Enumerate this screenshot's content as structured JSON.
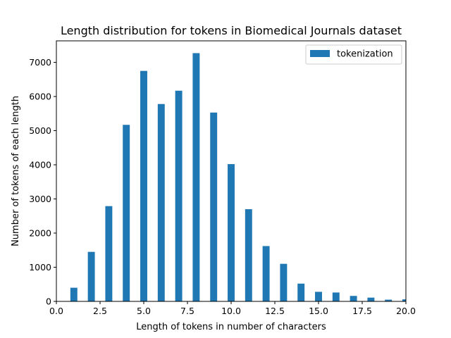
{
  "chart_data": {
    "type": "bar",
    "title": "Length distribution for tokens in Biomedical Journals dataset",
    "xlabel": "Length of tokens in number of characters",
    "ylabel": "Number of tokens of each length",
    "xlim": [
      0,
      20
    ],
    "ylim": [
      0,
      7630
    ],
    "grid": false,
    "legend_position": "top-right",
    "x_ticks": [
      0,
      2.5,
      5,
      7.5,
      10,
      12.5,
      15,
      17.5,
      20
    ],
    "x_tick_labels": [
      "0.0",
      "2.5",
      "5.0",
      "7.5",
      "10.0",
      "12.5",
      "15.0",
      "17.5",
      "20.0"
    ],
    "y_ticks": [
      0,
      1000,
      2000,
      3000,
      4000,
      5000,
      6000,
      7000
    ],
    "y_tick_labels": [
      "0",
      "1000",
      "2000",
      "3000",
      "4000",
      "5000",
      "6000",
      "7000"
    ],
    "bar_width": 0.4,
    "series": [
      {
        "name": "tokenization",
        "color": "#1f77b4",
        "x": [
          1,
          2,
          3,
          4,
          5,
          6,
          7,
          8,
          9,
          10,
          11,
          12,
          13,
          14,
          15,
          16,
          17,
          18,
          19,
          20
        ],
        "values": [
          400,
          1450,
          2790,
          5170,
          6750,
          5780,
          6170,
          7270,
          5530,
          4020,
          2700,
          1620,
          1100,
          520,
          280,
          260,
          160,
          110,
          50,
          60
        ]
      }
    ]
  }
}
